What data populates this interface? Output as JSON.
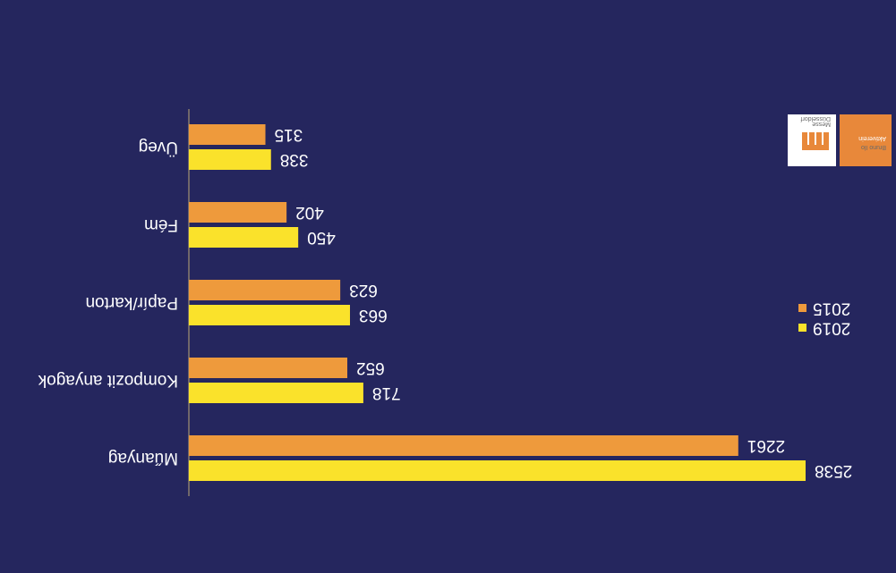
{
  "chart_data": {
    "type": "bar",
    "orientation": "horizontal",
    "categories": [
      "Üveg",
      "Fém",
      "Papír/karton",
      "Kompozit anyagok",
      "Műanyag"
    ],
    "series": [
      {
        "name": "2015",
        "color": "#ee9a3c",
        "values": [
          315,
          402,
          623,
          652,
          2261
        ]
      },
      {
        "name": "2019",
        "color": "#fae22b",
        "values": [
          338,
          450,
          663,
          718,
          2538
        ]
      }
    ],
    "xlim": [
      0,
      2538
    ],
    "grid": false,
    "legend": "right"
  },
  "colors": {
    "background": "#25265e",
    "text": "#ffffff",
    "axis": "#8a7f6e"
  },
  "logo": {
    "icon": "messe-munchen-logo-icon",
    "line1": "Messe",
    "line2": "Düsseldorf",
    "line3": "Bruno Ilo",
    "line4": "Aktiverein"
  }
}
